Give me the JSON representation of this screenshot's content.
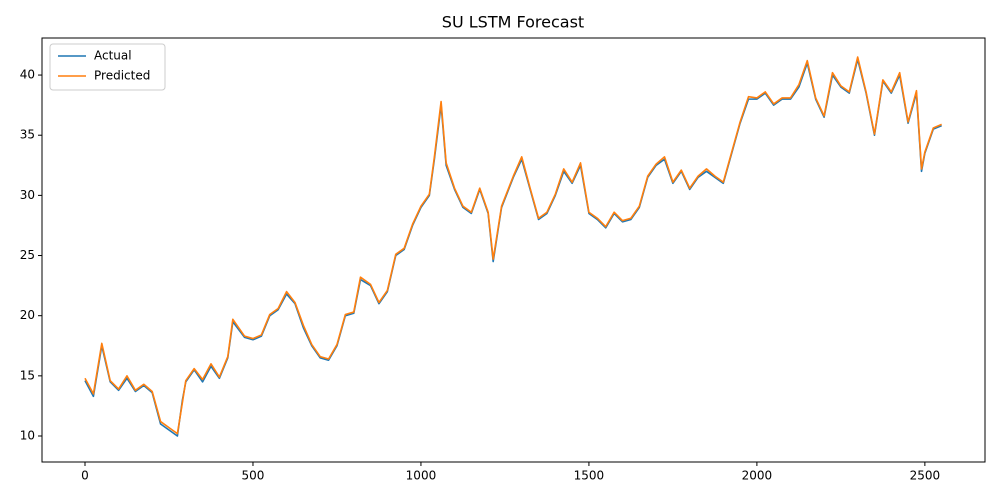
{
  "chart_data": {
    "type": "line",
    "title": "SU LSTM Forecast",
    "x": [
      0,
      25,
      50,
      75,
      100,
      125,
      150,
      175,
      200,
      225,
      250,
      275,
      290,
      300,
      325,
      350,
      375,
      400,
      425,
      440,
      475,
      500,
      525,
      550,
      575,
      600,
      625,
      650,
      675,
      700,
      725,
      750,
      775,
      800,
      820,
      850,
      875,
      900,
      925,
      950,
      975,
      1000,
      1025,
      1040,
      1060,
      1075,
      1100,
      1125,
      1150,
      1175,
      1200,
      1215,
      1240,
      1275,
      1300,
      1325,
      1350,
      1375,
      1400,
      1425,
      1450,
      1475,
      1500,
      1525,
      1550,
      1575,
      1600,
      1625,
      1650,
      1675,
      1700,
      1725,
      1750,
      1775,
      1800,
      1825,
      1850,
      1875,
      1900,
      1925,
      1950,
      1975,
      2000,
      2025,
      2050,
      2075,
      2100,
      2125,
      2150,
      2175,
      2200,
      2225,
      2250,
      2275,
      2300,
      2325,
      2350,
      2375,
      2400,
      2425,
      2450,
      2475,
      2490,
      2500,
      2525,
      2550
    ],
    "series": [
      {
        "name": "Actual",
        "color": "#1f77b4",
        "values": [
          14.6,
          13.3,
          17.5,
          14.5,
          13.8,
          14.8,
          13.7,
          14.2,
          13.6,
          11.0,
          10.5,
          10.0,
          13.0,
          14.5,
          15.5,
          14.5,
          15.8,
          14.8,
          16.5,
          19.5,
          18.2,
          18.0,
          18.3,
          20.0,
          20.5,
          21.8,
          21.0,
          19.0,
          17.5,
          16.5,
          16.3,
          17.5,
          20.0,
          20.2,
          23.0,
          22.5,
          21.0,
          22.0,
          25.0,
          25.5,
          27.5,
          29.0,
          30.0,
          33.0,
          37.5,
          32.5,
          30.5,
          29.0,
          28.5,
          30.5,
          28.5,
          24.5,
          29.0,
          31.5,
          33.0,
          30.5,
          28.0,
          28.5,
          30.0,
          32.0,
          31.0,
          32.5,
          28.5,
          28.0,
          27.3,
          28.5,
          27.8,
          28.0,
          29.0,
          31.5,
          32.5,
          33.0,
          31.0,
          32.0,
          30.5,
          31.5,
          32.0,
          31.5,
          31.0,
          33.5,
          36.0,
          38.0,
          38.0,
          38.5,
          37.5,
          38.0,
          38.0,
          39.0,
          41.0,
          38.0,
          36.5,
          40.0,
          39.0,
          38.5,
          41.3,
          38.5,
          35.0,
          39.5,
          38.5,
          40.0,
          36.0,
          38.5,
          32.0,
          33.5,
          35.5,
          35.8
        ]
      },
      {
        "name": "Predicted",
        "color": "#ff7f0e",
        "values": [
          14.8,
          13.5,
          17.7,
          14.6,
          13.9,
          15.0,
          13.8,
          14.3,
          13.7,
          11.2,
          10.7,
          10.2,
          12.8,
          14.6,
          15.6,
          14.7,
          16.0,
          14.9,
          16.6,
          19.7,
          18.3,
          18.1,
          18.4,
          20.1,
          20.6,
          22.0,
          21.1,
          19.2,
          17.6,
          16.6,
          16.4,
          17.6,
          20.1,
          20.3,
          23.2,
          22.6,
          21.1,
          22.1,
          25.1,
          25.6,
          27.6,
          29.1,
          30.1,
          33.2,
          37.8,
          32.7,
          30.6,
          29.1,
          28.6,
          30.6,
          28.6,
          24.7,
          29.1,
          31.6,
          33.2,
          30.6,
          28.1,
          28.6,
          30.1,
          32.2,
          31.1,
          32.7,
          28.6,
          28.1,
          27.4,
          28.6,
          27.9,
          28.1,
          29.1,
          31.6,
          32.6,
          33.2,
          31.1,
          32.1,
          30.6,
          31.6,
          32.2,
          31.6,
          31.1,
          33.6,
          36.1,
          38.2,
          38.1,
          38.6,
          37.6,
          38.1,
          38.1,
          39.2,
          41.2,
          38.1,
          36.6,
          40.2,
          39.1,
          38.6,
          41.5,
          38.6,
          35.1,
          39.6,
          38.6,
          40.2,
          36.1,
          38.7,
          32.2,
          33.6,
          35.6,
          35.9
        ]
      }
    ],
    "xlim": [
      -128,
      2679
    ],
    "xticks": [
      0,
      500,
      1000,
      1500,
      2000,
      2500
    ],
    "ylim": [
      7.84,
      43.08
    ],
    "yticks": [
      10,
      15,
      20,
      25,
      30,
      35,
      40
    ],
    "legend": "upper left",
    "grid": false
  }
}
